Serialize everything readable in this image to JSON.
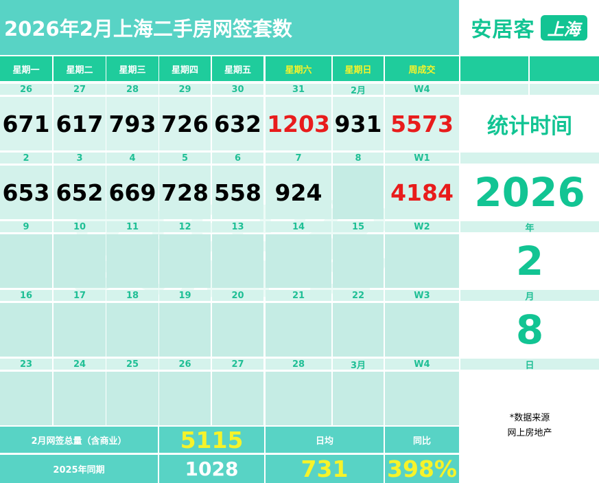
{
  "header": {
    "title": "2026年2月上海二手房网签套数",
    "logo_text": "安居客",
    "logo_badge": "上海"
  },
  "weekdays": [
    "星期一",
    "星期二",
    "星期三",
    "星期四",
    "星期五",
    "星期六",
    "星期日",
    "周成交"
  ],
  "weeks": [
    {
      "days": [
        "26",
        "27",
        "28",
        "29",
        "30",
        "31",
        "2月",
        "W4"
      ],
      "values": [
        "671",
        "617",
        "793",
        "726",
        "632",
        "1203",
        "931",
        "5573"
      ]
    },
    {
      "days": [
        "2",
        "3",
        "4",
        "5",
        "6",
        "7",
        "8",
        "W1"
      ],
      "values": [
        "653",
        "652",
        "669",
        "728",
        "558",
        "924",
        "",
        "4184"
      ]
    },
    {
      "days": [
        "9",
        "10",
        "11",
        "12",
        "13",
        "14",
        "15",
        "W2"
      ],
      "values": [
        "",
        "",
        "",
        "",
        "",
        "",
        "",
        ""
      ]
    },
    {
      "days": [
        "16",
        "17",
        "18",
        "19",
        "20",
        "21",
        "22",
        "W3"
      ],
      "values": [
        "",
        "",
        "",
        "",
        "",
        "",
        "",
        ""
      ]
    },
    {
      "days": [
        "23",
        "24",
        "25",
        "26",
        "27",
        "28",
        "3月",
        "W4"
      ],
      "values": [
        "",
        "",
        "",
        "",
        "",
        "",
        "",
        ""
      ]
    }
  ],
  "side": {
    "stat_label": "统计时间",
    "year": "2026",
    "year_label": "年",
    "month": "2",
    "month_label": "月",
    "day": "8",
    "day_label": "日",
    "source_line1": "*数据来源",
    "source_line2": "网上房地产"
  },
  "footer": {
    "total_label": "2月网签总量（含商业）",
    "total_value": "5115",
    "daily_avg_label": "日均",
    "yoy_label": "同比",
    "last_year_label": "2025年同期",
    "last_year_value": "1028",
    "daily_avg_value": "731",
    "yoy_value": "398%"
  },
  "colors": {
    "teal": "#58d3c5",
    "green": "#1fcc9c",
    "red": "#e81c1c",
    "yellow": "#f6f32a"
  }
}
